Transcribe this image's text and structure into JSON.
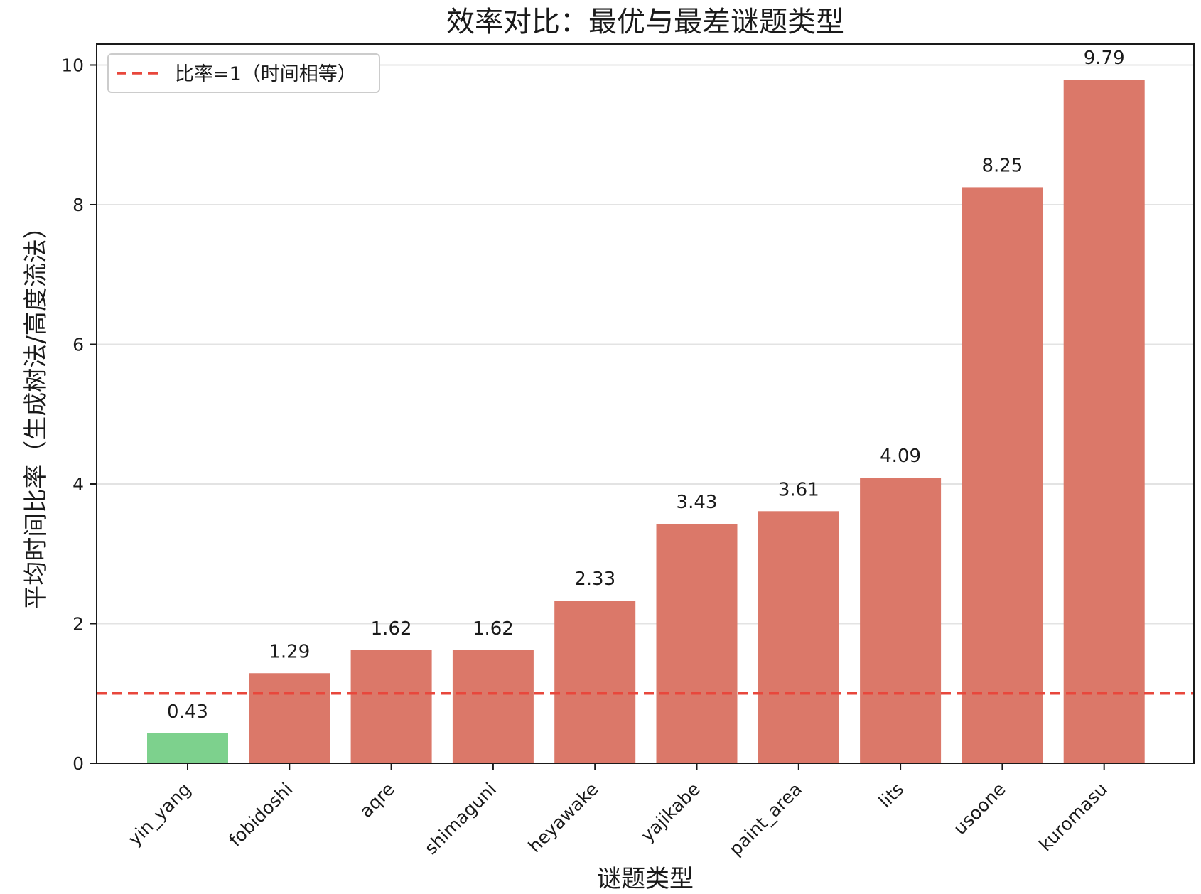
{
  "chart_data": {
    "type": "bar",
    "title": "效率对比：最优与最差谜题类型",
    "xlabel": "谜题类型",
    "ylabel": "平均时间比率（生成树法/高度流法）",
    "categories": [
      "yin_yang",
      "fobidoshi",
      "aqre",
      "shimaguni",
      "heyawake",
      "yajikabe",
      "paint_area",
      "lits",
      "usoone",
      "kuromasu"
    ],
    "values": [
      0.43,
      1.29,
      1.62,
      1.62,
      2.33,
      3.43,
      3.61,
      4.09,
      8.25,
      9.79
    ],
    "value_labels": [
      "0.43",
      "1.29",
      "1.62",
      "1.62",
      "2.33",
      "3.43",
      "3.61",
      "4.09",
      "8.25",
      "9.79"
    ],
    "bar_colors": [
      "#7dd18d",
      "#db7869",
      "#db7869",
      "#db7869",
      "#db7869",
      "#db7869",
      "#db7869",
      "#db7869",
      "#db7869",
      "#db7869"
    ],
    "ylim": [
      0,
      10.3
    ],
    "yticks": [
      0,
      2,
      4,
      6,
      8,
      10
    ],
    "ytick_labels": [
      "0",
      "2",
      "4",
      "6",
      "8",
      "10"
    ],
    "grid": "y",
    "reference_line": {
      "y": 1,
      "color": "#e8473c",
      "style": "dashed",
      "label": "比率=1（时间相等）"
    },
    "legend": {
      "placement": "top-left",
      "entries": [
        "比率=1（时间相等）"
      ]
    }
  }
}
